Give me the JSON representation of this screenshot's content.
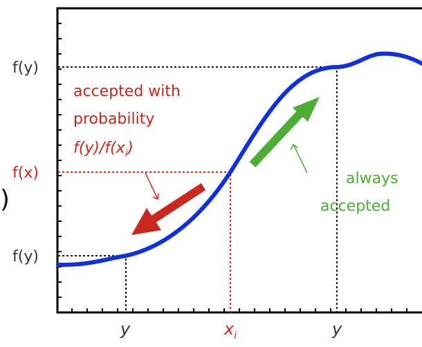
{
  "colors": {
    "curve": "#1030e0",
    "red": "#c8281e",
    "green": "#4cae34",
    "axis": "#000000",
    "guide_black": "#000000",
    "gray_text": "#333333"
  },
  "y_labels": {
    "fy_top": "f(y)",
    "fx": "f(x)",
    "fy_bottom": "f(y)"
  },
  "x_labels": {
    "y_left": "y",
    "xi": "x",
    "xi_sub": "i",
    "y_right": "y"
  },
  "annotations": {
    "red_line1": "accepted with",
    "red_line2": "probability",
    "red_line3": "f(y)/f(x",
    "red_line3_sub": "i",
    "red_line3_close": ")",
    "green_line1": "always",
    "green_line2": "accepted"
  },
  "edge_glyph": ")"
}
